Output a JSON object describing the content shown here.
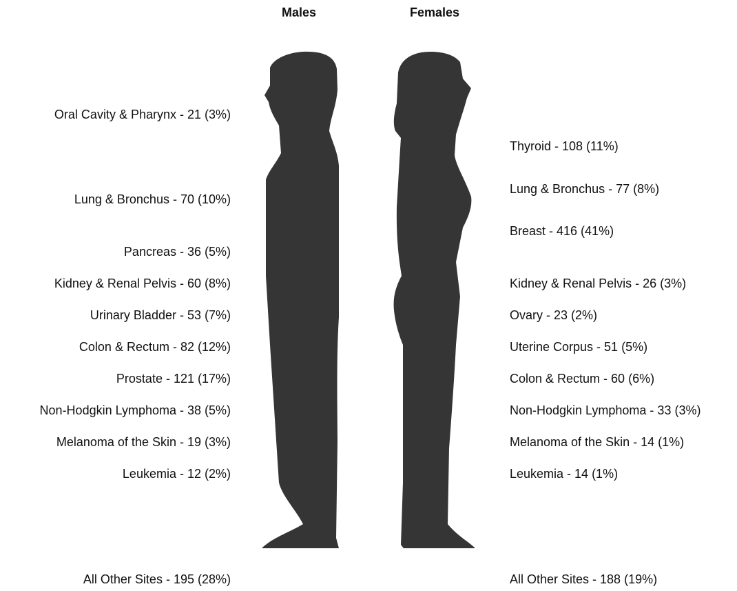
{
  "headers": {
    "males": "Males",
    "females": "Females"
  },
  "males": [
    "Oral Cavity & Pharynx - 21 (3%)",
    "Lung & Bronchus - 70 (10%)",
    "Pancreas - 36 (5%)",
    "Kidney & Renal Pelvis - 60 (8%)",
    "Urinary Bladder - 53 (7%)",
    "Colon & Rectum - 82 (12%)",
    "Prostate - 121 (17%)",
    "Non-Hodgkin Lymphoma - 38 (5%)",
    "Melanoma of the Skin - 19 (3%)",
    "Leukemia - 12 (2%)",
    "All Other Sites - 195 (28%)"
  ],
  "females": [
    "Thyroid - 108 (11%)",
    "Lung & Bronchus - 77 (8%)",
    "Breast - 416 (41%)",
    "Kidney & Renal Pelvis - 26 (3%)",
    "Ovary - 23 (2%)",
    "Uterine Corpus - 51 (5%)",
    "Colon & Rectum - 60 (6%)",
    "Non-Hodgkin Lymphoma - 33 (3%)",
    "Melanoma of the Skin - 14 (1%)",
    "Leukemia - 14 (1%)",
    "All Other Sites - 188 (19%)"
  ]
}
